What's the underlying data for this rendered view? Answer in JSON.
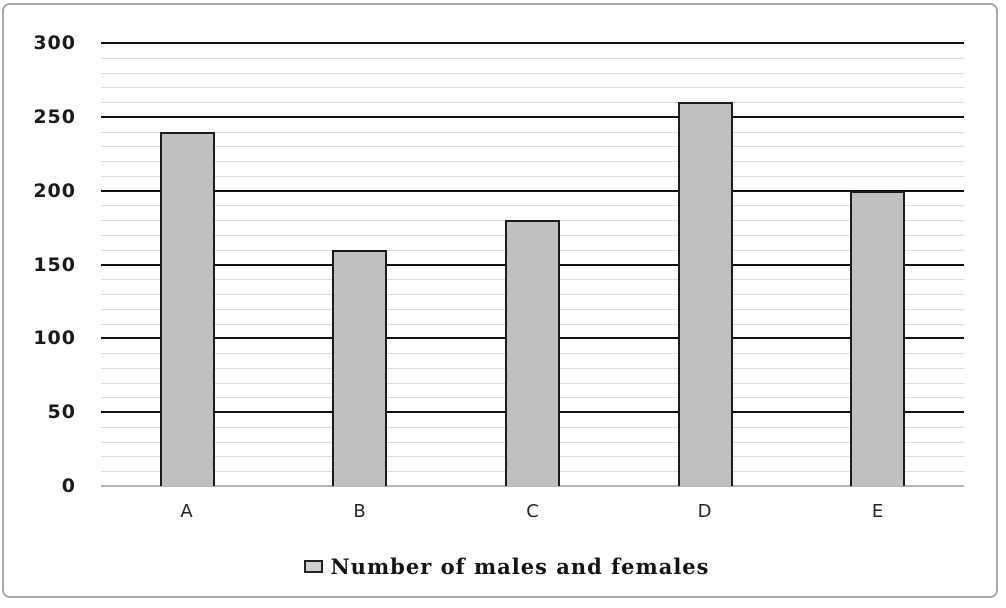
{
  "chart_data": {
    "type": "bar",
    "title": "",
    "categories": [
      "A",
      "B",
      "C",
      "D",
      "E"
    ],
    "values": [
      240,
      160,
      180,
      260,
      200
    ],
    "series": [
      {
        "name": "Number of males and females",
        "values": [
          240,
          160,
          180,
          260,
          200
        ]
      }
    ],
    "xlabel": "",
    "ylabel": "",
    "ylim": [
      0,
      300
    ],
    "y_major_unit": 50,
    "y_minor_unit": 10,
    "y_tick_labels": [
      "0",
      "50",
      "100",
      "150",
      "200",
      "250",
      "300"
    ],
    "grid": "horizontal major (dark) and minor (light) gridlines on",
    "legend_position": "bottom-center",
    "legend": {
      "marker": "gray-outlined-square",
      "label": "Number of males and females"
    }
  },
  "colors": {
    "background": "#ffffff",
    "frame_border": "#a9a9a9",
    "bar_fill": "#c0c0c0",
    "bar_border": "#1c1c1c",
    "major_gridline": "#111111",
    "minor_gridline": "#dcdcdc",
    "baseline": "#b3b3b3",
    "text": "#1a1a1a"
  }
}
